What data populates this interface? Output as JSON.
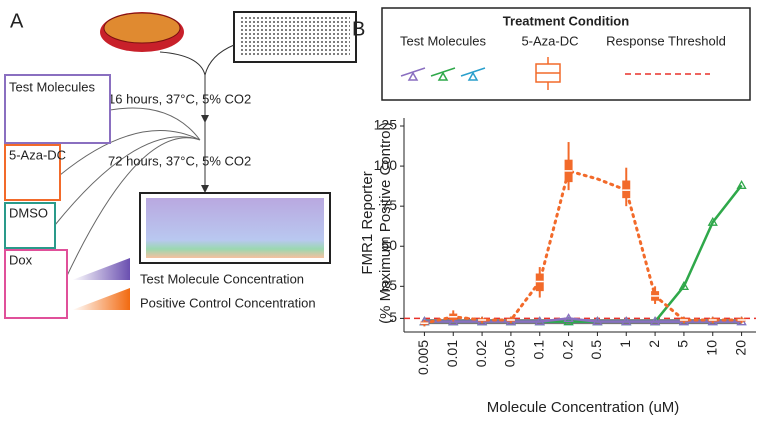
{
  "panel_a": {
    "label": "A",
    "step1": "16 hours, 37°C, 5% CO2",
    "step2": "72 hours, 37°C, 5% CO2",
    "inputs": [
      "Test Molecules",
      "5-Aza-DC",
      "DMSO",
      "Dox"
    ],
    "gradients": [
      "Test Molecule Concentration",
      "Positive Control Concentration"
    ]
  },
  "panel_b": {
    "label": "B"
  },
  "chart_data": {
    "type": "boxline",
    "legend_title": "Treatment Condition",
    "x_label": "Molecule Concentration (uM)",
    "y_label": "FMR1 Reporter",
    "y_sublabel": "(% Maximum Positive Control)",
    "categories": [
      "0.005",
      "0.01",
      "0.02",
      "0.05",
      "0.1",
      "0.2",
      "0.5",
      "1",
      "2",
      "5",
      "10",
      "20"
    ],
    "ylim": [
      -1,
      130
    ],
    "yticks": [
      5,
      25,
      50,
      75,
      100,
      125
    ],
    "series": [
      {
        "name": "5-Aza-DC",
        "color": "#f26a2a",
        "values": [
          2,
          6,
          4,
          4,
          28,
          97,
          92,
          85,
          19,
          4,
          4,
          4
        ],
        "q1": [
          1,
          4,
          3,
          3,
          22,
          90,
          null,
          80,
          16,
          3,
          3,
          3
        ],
        "q3": [
          3,
          8,
          5,
          5,
          33,
          104,
          null,
          91,
          22,
          5,
          5,
          5
        ],
        "whislo": [
          0,
          3,
          2,
          2,
          18,
          85,
          null,
          75,
          14,
          2,
          2,
          2
        ],
        "whishi": [
          4,
          10,
          6,
          6,
          37,
          115,
          null,
          99,
          25,
          6,
          6,
          6
        ]
      },
      {
        "name": "Test Molecules",
        "color": "#8a6fc0",
        "values": [
          3,
          3,
          3,
          3,
          3,
          5,
          3,
          3,
          3,
          3,
          3,
          3
        ]
      },
      {
        "color": "#2fa84a",
        "values": [
          3,
          3,
          3,
          3,
          3,
          3,
          3,
          3,
          3,
          25,
          65,
          88
        ]
      },
      {
        "color": "#2a9fcc",
        "values": [
          3,
          3,
          3,
          3,
          3,
          3,
          3,
          3,
          3,
          3,
          3,
          3
        ]
      },
      {
        "color": "#777777",
        "values": [
          3,
          3,
          3,
          3,
          3,
          3,
          3,
          3,
          3,
          3,
          3,
          3
        ]
      }
    ],
    "threshold": {
      "name": "Response Threshold",
      "value": 5,
      "color": "#e8302a"
    }
  }
}
